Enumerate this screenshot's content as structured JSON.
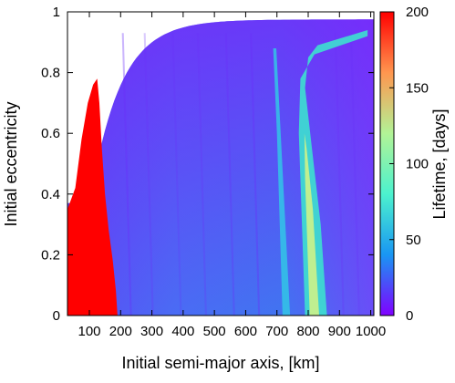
{
  "chart_data": {
    "type": "heatmap",
    "title": "",
    "xlabel": "Initial semi-major axis, [km]",
    "ylabel": "Initial eccentricity",
    "colorbar_label": "Lifetime, [days]",
    "xlim": [
      30,
      1010
    ],
    "ylim": [
      0,
      1
    ],
    "clim": [
      0,
      200
    ],
    "xticks": [
      100,
      200,
      300,
      400,
      500,
      600,
      700,
      800,
      900,
      1000
    ],
    "xtick_labels": [
      "100",
      "200",
      "300",
      "400",
      "500",
      "600",
      "700",
      "800",
      "900",
      "1000"
    ],
    "yticks": [
      0,
      0.2,
      0.4,
      0.6,
      0.8,
      1
    ],
    "ytick_labels": [
      "0",
      "0.2",
      "0.4",
      "0.6",
      "0.8",
      "1"
    ],
    "cticks": [
      0,
      50,
      100,
      150,
      200
    ],
    "ctick_labels": [
      "0",
      "50",
      "100",
      "150",
      "200"
    ],
    "colormap": "rainbow",
    "colormap_stops": [
      "#8000ff",
      "#1996f3",
      "#4cf2ce",
      "#b2f396",
      "#ff964f",
      "#ff0000"
    ],
    "regions": [
      {
        "name": "short-lifetime-base",
        "value": 10
      },
      {
        "name": "impact-red-region",
        "x": [
          30,
          190
        ],
        "y_max_at_peak": 0.78,
        "x_peak": 125,
        "value": 200
      },
      {
        "name": "resonance-band-700",
        "x": [
          680,
          760
        ],
        "value": 45
      },
      {
        "name": "resonance-band-820",
        "x": [
          760,
          870
        ],
        "value": 110
      }
    ]
  }
}
